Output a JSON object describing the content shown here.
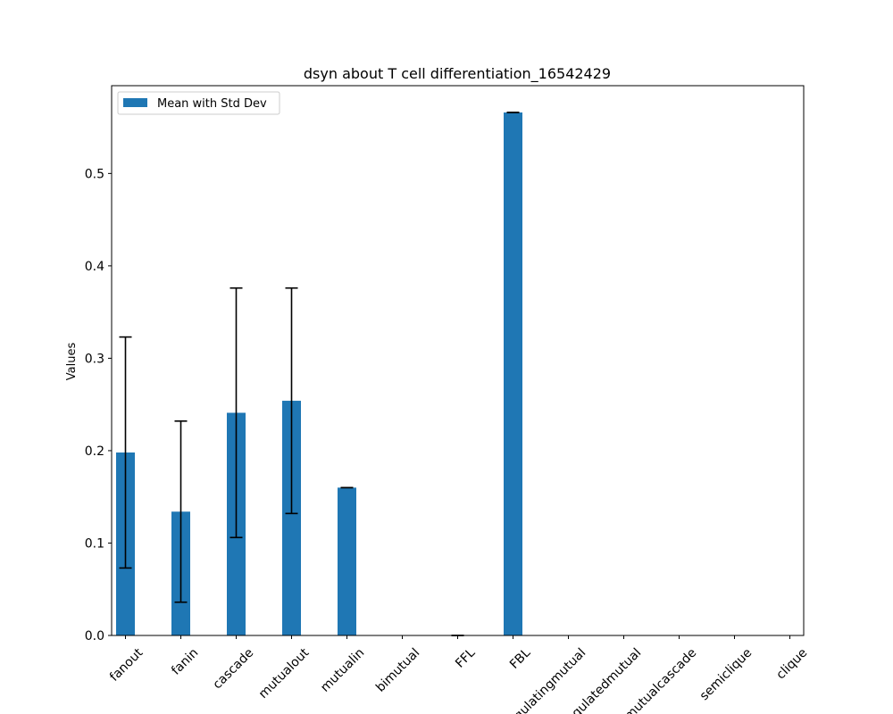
{
  "chart_data": {
    "type": "bar",
    "title": "dsyn about T cell differentiation_16542429",
    "xlabel": "",
    "ylabel": "Values",
    "ylim": [
      0,
      0.595
    ],
    "yticks": [
      0.0,
      0.1,
      0.2,
      0.3,
      0.4,
      0.5
    ],
    "ytick_labels": [
      "0.0",
      "0.1",
      "0.2",
      "0.3",
      "0.4",
      "0.5"
    ],
    "categories": [
      "fanout",
      "fanin",
      "cascade",
      "mutualout",
      "mutualin",
      "bimutual",
      "FFL",
      "FBL",
      "regulatingmutual",
      "regulatedmutual",
      "mutualcascade",
      "semiclique",
      "clique"
    ],
    "series": [
      {
        "name": "Mean with Std Dev",
        "color": "#1f77b4",
        "values": [
          0.198,
          0.134,
          0.241,
          0.254,
          0.16,
          0.0,
          0.0,
          0.566,
          0.0,
          0.0,
          0.0,
          0.0,
          0.0
        ],
        "errors": [
          0.125,
          0.098,
          0.135,
          0.122,
          0.0,
          0.0,
          0.0,
          0.0,
          0.0,
          0.0,
          0.0,
          0.0,
          0.0
        ],
        "show_error": [
          true,
          true,
          true,
          true,
          true,
          false,
          true,
          true,
          false,
          false,
          false,
          false,
          false
        ]
      }
    ],
    "legend": {
      "position": "upper-left",
      "label": "Mean with Std Dev"
    },
    "grid": false,
    "x_tick_rotation": 45
  }
}
